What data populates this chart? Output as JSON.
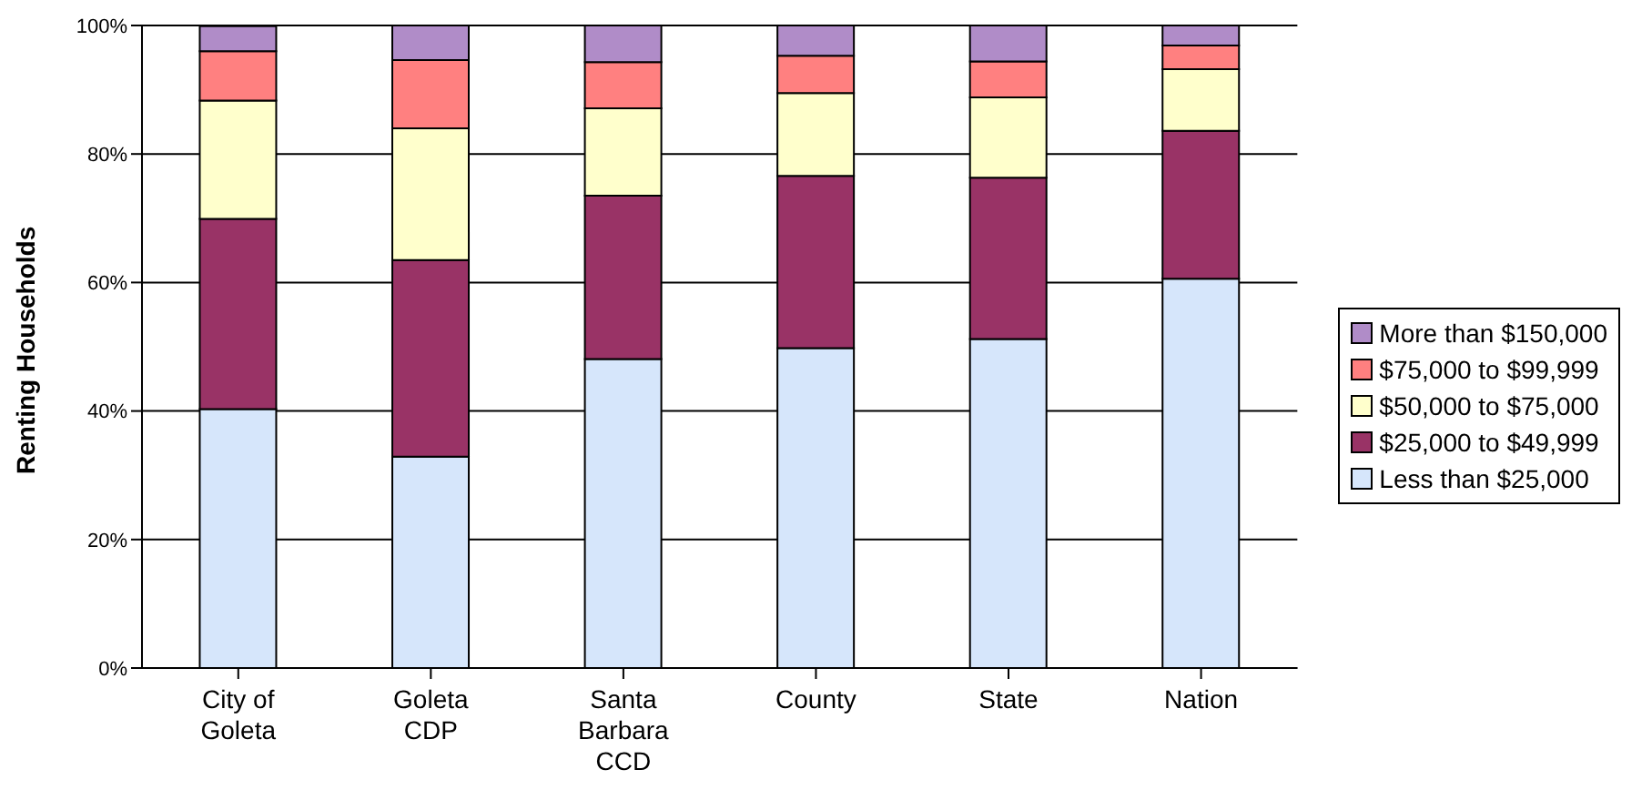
{
  "chart_data": {
    "type": "bar",
    "stacked": true,
    "ylabel": "Renting Households",
    "categories": [
      "City of Goleta",
      "Goleta CDP",
      "Santa Barbara CCD",
      "County",
      "State",
      "Nation"
    ],
    "series": [
      {
        "name": "Less than $25,000",
        "color": "#d6e6fb",
        "values": [
          40.3,
          32.9,
          48.1,
          49.8,
          51.2,
          60.6
        ]
      },
      {
        "name": "$25,000 to $49,999",
        "color": "#993366",
        "values": [
          29.6,
          30.6,
          25.4,
          26.8,
          25.1,
          23.0
        ]
      },
      {
        "name": "$50,000 to $75,000",
        "color": "#ffffcc",
        "values": [
          18.4,
          20.5,
          13.6,
          12.9,
          12.5,
          9.6
        ]
      },
      {
        "name": "$75,000 to $99,999",
        "color": "#ff8080",
        "values": [
          7.7,
          10.6,
          7.2,
          5.8,
          5.6,
          3.7
        ]
      },
      {
        "name": "More than $150,000",
        "color": "#b08cc8",
        "values": [
          3.9,
          5.4,
          5.7,
          4.7,
          5.6,
          3.1
        ]
      }
    ],
    "ylim": [
      0,
      100
    ],
    "yticks": [
      {
        "value": 0,
        "label": "0%"
      },
      {
        "value": 20,
        "label": "20%"
      },
      {
        "value": 40,
        "label": "40%"
      },
      {
        "value": 60,
        "label": "60%"
      },
      {
        "value": 80,
        "label": "80%"
      },
      {
        "value": 100,
        "label": "100%"
      }
    ],
    "grid": "y",
    "legend": "right"
  }
}
